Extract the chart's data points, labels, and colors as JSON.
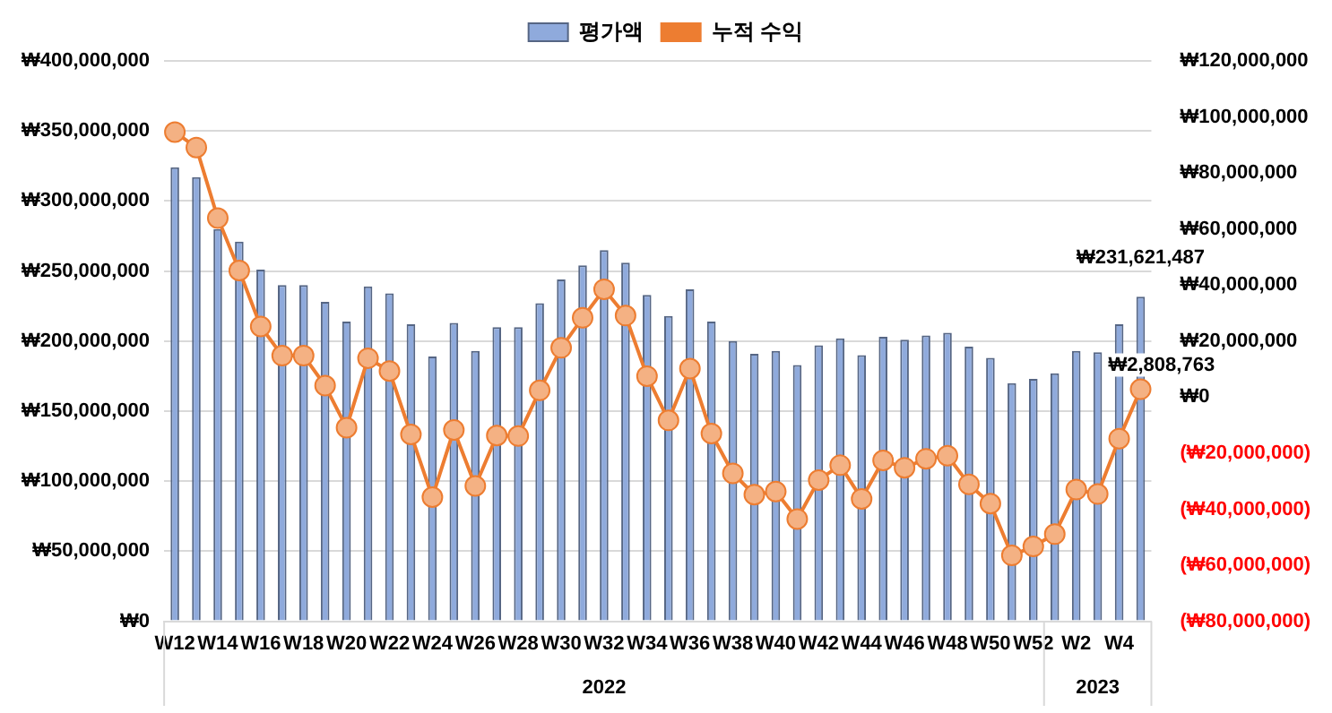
{
  "chart_data": {
    "type": "bar",
    "categories": [
      "W12",
      null,
      "W14",
      null,
      "W16",
      null,
      "W18",
      null,
      "W20",
      null,
      "W22",
      null,
      "W24",
      null,
      "W26",
      null,
      "W28",
      null,
      "W30",
      null,
      "W32",
      null,
      "W34",
      null,
      "W36",
      null,
      "W38",
      null,
      "W40",
      null,
      "W42",
      null,
      "W44",
      null,
      "W46",
      null,
      "W48",
      null,
      "W50",
      null,
      "W52",
      null,
      "W2",
      null,
      "W4",
      null
    ],
    "series": [
      {
        "name": "평가액",
        "color": "#8faadc",
        "values": [
          324000000,
          317000000,
          280000000,
          271000000,
          251000000,
          240000000,
          240000000,
          228000000,
          214000000,
          239000000,
          234000000,
          212000000,
          189000000,
          213000000,
          193000000,
          210000000,
          210000000,
          227000000,
          244000000,
          254000000,
          265000000,
          256000000,
          233000000,
          218000000,
          237000000,
          214000000,
          200000000,
          191000000,
          193000000,
          183000000,
          197000000,
          202000000,
          190000000,
          203000000,
          201000000,
          204000000,
          206000000,
          196000000,
          188000000,
          170000000,
          173000000,
          177000000,
          193000000,
          192000000,
          212000000,
          231621487
        ],
        "value_labels": [
          null,
          null,
          null,
          null,
          null,
          null,
          null,
          null,
          null,
          null,
          null,
          null,
          null,
          null,
          null,
          null,
          null,
          null,
          null,
          null,
          null,
          null,
          null,
          null,
          null,
          null,
          null,
          null,
          null,
          null,
          null,
          null,
          null,
          null,
          null,
          null,
          null,
          null,
          null,
          null,
          null,
          null,
          null,
          null,
          null,
          "₩231,621,487"
        ]
      },
      {
        "name": "누적 수익",
        "type": "line",
        "axis": "y2",
        "color": "#ed7d31",
        "values": [
          94600000,
          89100000,
          63900000,
          45200000,
          25200000,
          14800000,
          14800000,
          4100000,
          -10900000,
          13900000,
          9300000,
          -13300000,
          -35700000,
          -11700000,
          -31700000,
          -13700000,
          -13900000,
          2400000,
          17600000,
          28300000,
          38500000,
          29100000,
          7500000,
          -8300000,
          10200000,
          -13000000,
          -27200000,
          -34800000,
          -33700000,
          -43500000,
          -29600000,
          -24300000,
          -36300000,
          -22600000,
          -25200000,
          -22000000,
          -20900000,
          -31100000,
          -38000000,
          -56500000,
          -53300000,
          -48900000,
          -33000000,
          -34600000,
          -14800000,
          2808763
        ],
        "value_labels": [
          null,
          null,
          null,
          null,
          null,
          null,
          null,
          null,
          null,
          null,
          null,
          null,
          null,
          null,
          null,
          null,
          null,
          null,
          null,
          null,
          null,
          null,
          null,
          null,
          null,
          null,
          null,
          null,
          null,
          null,
          null,
          null,
          null,
          null,
          null,
          null,
          null,
          null,
          null,
          null,
          null,
          null,
          null,
          null,
          null,
          "₩2,808,763"
        ]
      }
    ],
    "ylim": [
      0,
      400000000
    ],
    "yticks": [
      {
        "value": 0,
        "label": "₩0"
      },
      {
        "value": 50000000,
        "label": "₩50,000,000"
      },
      {
        "value": 100000000,
        "label": "₩100,000,000"
      },
      {
        "value": 150000000,
        "label": "₩150,000,000"
      },
      {
        "value": 200000000,
        "label": "₩200,000,000"
      },
      {
        "value": 250000000,
        "label": "₩250,000,000"
      },
      {
        "value": 300000000,
        "label": "₩300,000,000"
      },
      {
        "value": 350000000,
        "label": "₩350,000,000"
      },
      {
        "value": 400000000,
        "label": "₩400,000,000"
      }
    ],
    "y2lim": [
      -80000000,
      120000000
    ],
    "y2ticks": [
      {
        "value": -80000000,
        "label": "(₩80,000,000)"
      },
      {
        "value": -60000000,
        "label": "(₩60,000,000)"
      },
      {
        "value": -40000000,
        "label": "(₩40,000,000)"
      },
      {
        "value": -20000000,
        "label": "(₩20,000,000)"
      },
      {
        "value": 0,
        "label": "₩0"
      },
      {
        "value": 20000000,
        "label": "₩20,000,000"
      },
      {
        "value": 40000000,
        "label": "₩40,000,000"
      },
      {
        "value": 60000000,
        "label": "₩60,000,000"
      },
      {
        "value": 80000000,
        "label": "₩80,000,000"
      },
      {
        "value": 100000000,
        "label": "₩100,000,000"
      },
      {
        "value": 120000000,
        "label": "₩120,000,000"
      }
    ],
    "annotations": [
      "2022",
      "2023"
    ],
    "grid": "y",
    "legend": "top",
    "marker": "circle",
    "line_style": "solid"
  }
}
